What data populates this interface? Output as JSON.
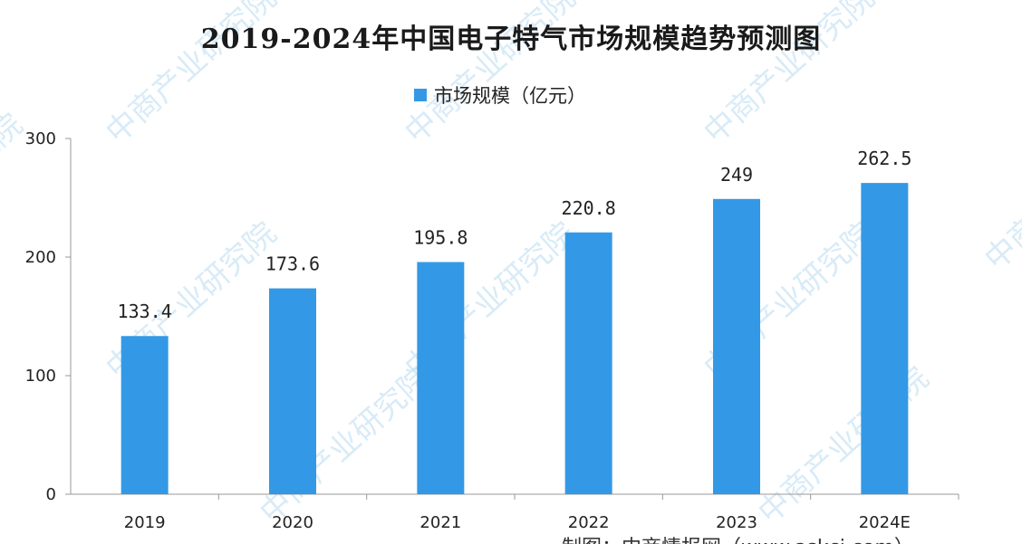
{
  "chart_data": {
    "type": "bar",
    "title": "2019-2024年中国电子特气市场规模趋势预测图",
    "categories": [
      "2019",
      "2020",
      "2021",
      "2022",
      "2023",
      "2024E"
    ],
    "series": [
      {
        "name": "市场规模（亿元）",
        "values": [
          133.4,
          173.6,
          195.8,
          220.8,
          249,
          262.5
        ],
        "labels": [
          "133.4",
          "173.6",
          "195.8",
          "220.8",
          "249",
          "262.5"
        ],
        "color": "#3399e6"
      }
    ],
    "yticks": [
      "0",
      "100",
      "200",
      "300"
    ],
    "ylim": [
      0,
      300
    ],
    "grid": false,
    "legend": "top-center"
  },
  "source_note": "制图：中商情报网（www.askci.com）",
  "watermark": "中商产业研究院",
  "colors": {
    "bar": "#3399e6",
    "axis": "#999999",
    "watermark": "#b9dcf2"
  }
}
